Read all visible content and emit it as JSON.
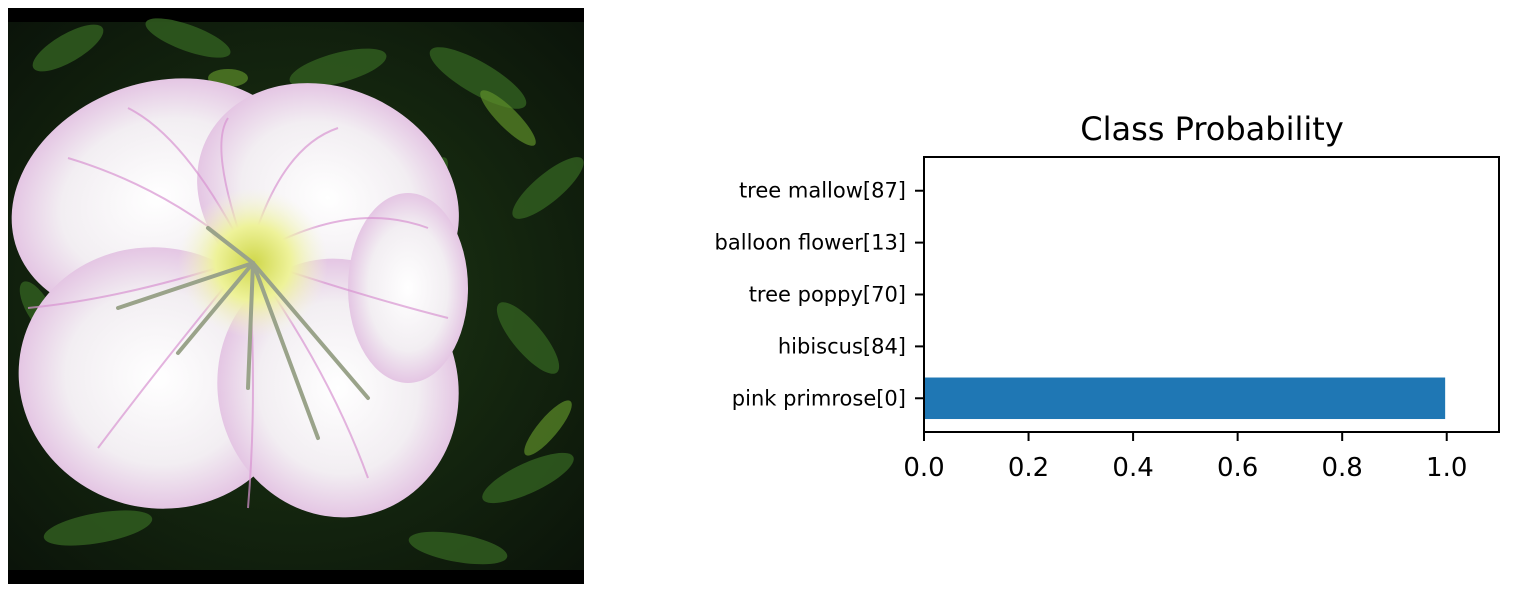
{
  "image": {
    "subject": "pink-primrose-photo"
  },
  "chart_data": {
    "type": "bar",
    "orientation": "horizontal",
    "title": "Class Probability",
    "xlabel": "",
    "ylabel": "",
    "categories": [
      "pink primrose[0]",
      "hibiscus[84]",
      "tree poppy[70]",
      "balloon flower[13]",
      "tree mallow[87]"
    ],
    "values": [
      0.997,
      0.001,
      0.001,
      0.0005,
      0.0005
    ],
    "xlim": [
      0,
      1.1
    ],
    "xticks": [
      "0.0",
      "0.2",
      "0.4",
      "0.6",
      "0.8",
      "1.0"
    ],
    "bar_color": "#1f77b4",
    "grid": false,
    "legend": "none"
  }
}
